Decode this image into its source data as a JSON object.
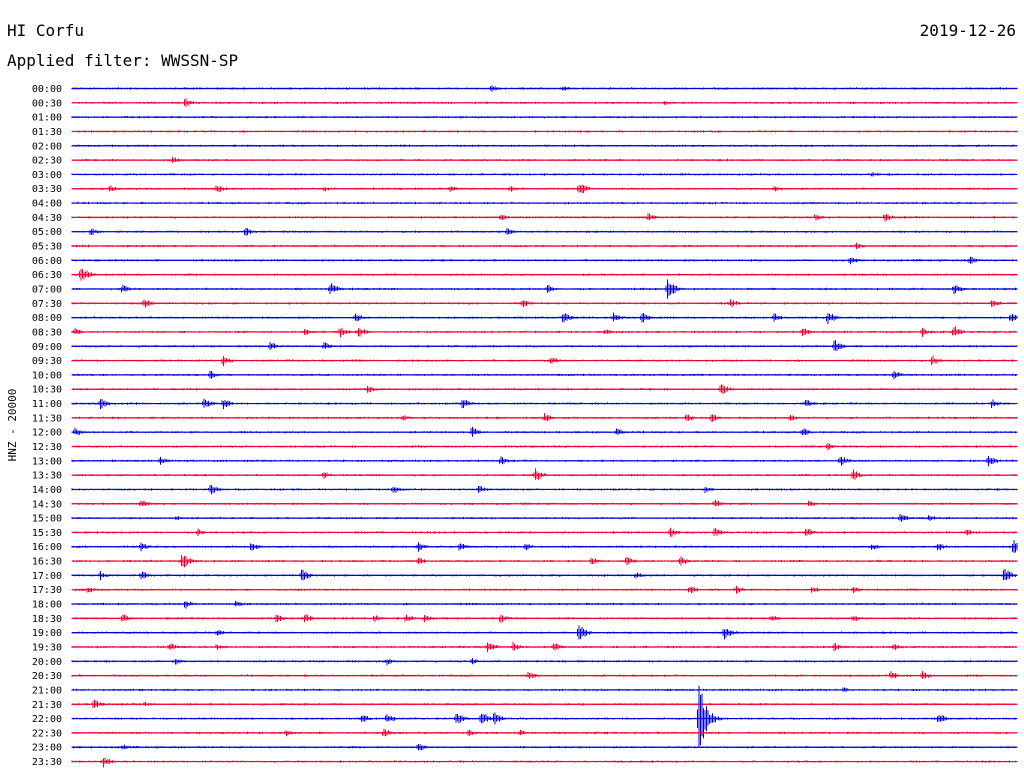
{
  "header": {
    "station": "HI Corfu",
    "date": "2019-12-26",
    "filter_label": "Applied filter: WWSSN-SP"
  },
  "chart_data": {
    "type": "line",
    "title": "HI Corfu",
    "ylabel": "HNZ - 20000",
    "row_labels": [
      "00:00",
      "00:30",
      "01:00",
      "01:30",
      "02:00",
      "02:30",
      "03:00",
      "03:30",
      "04:00",
      "04:30",
      "05:00",
      "05:30",
      "06:00",
      "06:30",
      "07:00",
      "07:30",
      "08:00",
      "08:30",
      "09:00",
      "09:30",
      "10:00",
      "10:30",
      "11:00",
      "11:30",
      "12:00",
      "12:30",
      "13:00",
      "13:30",
      "14:00",
      "14:30",
      "15:00",
      "15:30",
      "16:00",
      "16:30",
      "17:00",
      "17:30",
      "18:00",
      "18:30",
      "19:00",
      "19:30",
      "20:00",
      "20:30",
      "21:00",
      "21:30",
      "22:00",
      "22:30",
      "23:00",
      "23:30"
    ],
    "colors": {
      "even_rows": "#0000dd",
      "odd_rows": "#ee0033"
    },
    "x_minutes_per_row": 30,
    "events": [
      {
        "row": 0,
        "minute": 13.3,
        "amp": 4
      },
      {
        "row": 0,
        "minute": 15.6,
        "amp": 3
      },
      {
        "row": 1,
        "minute": 3.6,
        "amp": 5
      },
      {
        "row": 1,
        "minute": 18.8,
        "amp": 3
      },
      {
        "row": 5,
        "minute": 3.2,
        "amp": 4
      },
      {
        "row": 6,
        "minute": 25.4,
        "amp": 3
      },
      {
        "row": 7,
        "minute": 1.2,
        "amp": 4
      },
      {
        "row": 7,
        "minute": 4.6,
        "amp": 5
      },
      {
        "row": 7,
        "minute": 8.0,
        "amp": 3
      },
      {
        "row": 7,
        "minute": 12.0,
        "amp": 4
      },
      {
        "row": 7,
        "minute": 13.9,
        "amp": 4
      },
      {
        "row": 7,
        "minute": 16.1,
        "amp": 8
      },
      {
        "row": 7,
        "minute": 22.3,
        "amp": 4
      },
      {
        "row": 9,
        "minute": 13.6,
        "amp": 4
      },
      {
        "row": 9,
        "minute": 18.3,
        "amp": 5
      },
      {
        "row": 9,
        "minute": 23.6,
        "amp": 4
      },
      {
        "row": 9,
        "minute": 25.8,
        "amp": 5
      },
      {
        "row": 10,
        "minute": 0.6,
        "amp": 5
      },
      {
        "row": 10,
        "minute": 5.5,
        "amp": 5
      },
      {
        "row": 10,
        "minute": 13.8,
        "amp": 4
      },
      {
        "row": 11,
        "minute": 24.9,
        "amp": 4
      },
      {
        "row": 12,
        "minute": 24.7,
        "amp": 5
      },
      {
        "row": 12,
        "minute": 28.5,
        "amp": 5
      },
      {
        "row": 13,
        "minute": 0.3,
        "amp": 10
      },
      {
        "row": 14,
        "minute": 1.6,
        "amp": 5
      },
      {
        "row": 14,
        "minute": 8.2,
        "amp": 7
      },
      {
        "row": 14,
        "minute": 15.1,
        "amp": 5
      },
      {
        "row": 14,
        "minute": 18.9,
        "amp": 12
      },
      {
        "row": 14,
        "minute": 28.0,
        "amp": 6
      },
      {
        "row": 15,
        "minute": 2.3,
        "amp": 6
      },
      {
        "row": 15,
        "minute": 14.3,
        "amp": 5
      },
      {
        "row": 15,
        "minute": 20.9,
        "amp": 5
      },
      {
        "row": 15,
        "minute": 29.2,
        "amp": 5
      },
      {
        "row": 16,
        "minute": 9.0,
        "amp": 5
      },
      {
        "row": 16,
        "minute": 15.6,
        "amp": 7
      },
      {
        "row": 16,
        "minute": 17.2,
        "amp": 6
      },
      {
        "row": 16,
        "minute": 18.1,
        "amp": 6
      },
      {
        "row": 16,
        "minute": 22.3,
        "amp": 5
      },
      {
        "row": 16,
        "minute": 24.0,
        "amp": 7
      },
      {
        "row": 16,
        "minute": 29.8,
        "amp": 5
      },
      {
        "row": 17,
        "minute": 0.1,
        "amp": 4
      },
      {
        "row": 17,
        "minute": 7.4,
        "amp": 4
      },
      {
        "row": 17,
        "minute": 8.5,
        "amp": 6
      },
      {
        "row": 17,
        "minute": 9.1,
        "amp": 6
      },
      {
        "row": 17,
        "minute": 16.9,
        "amp": 4
      },
      {
        "row": 17,
        "minute": 23.2,
        "amp": 5
      },
      {
        "row": 17,
        "minute": 27.0,
        "amp": 5
      },
      {
        "row": 17,
        "minute": 28.0,
        "amp": 7
      },
      {
        "row": 18,
        "minute": 6.3,
        "amp": 5
      },
      {
        "row": 18,
        "minute": 8.0,
        "amp": 5
      },
      {
        "row": 18,
        "minute": 24.2,
        "amp": 8
      },
      {
        "row": 19,
        "minute": 4.8,
        "amp": 6
      },
      {
        "row": 19,
        "minute": 15.2,
        "amp": 5
      },
      {
        "row": 19,
        "minute": 27.3,
        "amp": 6
      },
      {
        "row": 20,
        "minute": 4.4,
        "amp": 5
      },
      {
        "row": 20,
        "minute": 26.1,
        "amp": 5
      },
      {
        "row": 21,
        "minute": 9.4,
        "amp": 5
      },
      {
        "row": 21,
        "minute": 20.6,
        "amp": 7
      },
      {
        "row": 22,
        "minute": 0.9,
        "amp": 6
      },
      {
        "row": 22,
        "minute": 4.2,
        "amp": 6
      },
      {
        "row": 22,
        "minute": 4.8,
        "amp": 6
      },
      {
        "row": 22,
        "minute": 12.4,
        "amp": 6
      },
      {
        "row": 22,
        "minute": 23.3,
        "amp": 5
      },
      {
        "row": 22,
        "minute": 29.2,
        "amp": 5
      },
      {
        "row": 23,
        "minute": 10.5,
        "amp": 4
      },
      {
        "row": 23,
        "minute": 15.0,
        "amp": 5
      },
      {
        "row": 23,
        "minute": 19.5,
        "amp": 5
      },
      {
        "row": 23,
        "minute": 20.3,
        "amp": 5
      },
      {
        "row": 23,
        "minute": 22.8,
        "amp": 4
      },
      {
        "row": 24,
        "minute": 0.1,
        "amp": 5
      },
      {
        "row": 24,
        "minute": 12.7,
        "amp": 6
      },
      {
        "row": 24,
        "minute": 17.3,
        "amp": 5
      },
      {
        "row": 24,
        "minute": 23.2,
        "amp": 5
      },
      {
        "row": 25,
        "minute": 24.0,
        "amp": 4
      },
      {
        "row": 26,
        "minute": 2.8,
        "amp": 5
      },
      {
        "row": 26,
        "minute": 13.6,
        "amp": 5
      },
      {
        "row": 26,
        "minute": 24.4,
        "amp": 6
      },
      {
        "row": 26,
        "minute": 29.1,
        "amp": 7
      },
      {
        "row": 27,
        "minute": 8.0,
        "amp": 4
      },
      {
        "row": 27,
        "minute": 14.7,
        "amp": 8
      },
      {
        "row": 27,
        "minute": 24.8,
        "amp": 6
      },
      {
        "row": 28,
        "minute": 4.4,
        "amp": 6
      },
      {
        "row": 28,
        "minute": 10.2,
        "amp": 5
      },
      {
        "row": 28,
        "minute": 12.9,
        "amp": 5
      },
      {
        "row": 28,
        "minute": 20.1,
        "amp": 4
      },
      {
        "row": 29,
        "minute": 2.2,
        "amp": 5
      },
      {
        "row": 29,
        "minute": 20.4,
        "amp": 5
      },
      {
        "row": 29,
        "minute": 23.4,
        "amp": 4
      },
      {
        "row": 30,
        "minute": 3.3,
        "amp": 3
      },
      {
        "row": 30,
        "minute": 26.3,
        "amp": 5
      },
      {
        "row": 30,
        "minute": 27.2,
        "amp": 4
      },
      {
        "row": 31,
        "minute": 4.0,
        "amp": 4
      },
      {
        "row": 31,
        "minute": 19.0,
        "amp": 6
      },
      {
        "row": 31,
        "minute": 20.4,
        "amp": 5
      },
      {
        "row": 31,
        "minute": 23.3,
        "amp": 6
      },
      {
        "row": 31,
        "minute": 28.4,
        "amp": 4
      },
      {
        "row": 32,
        "minute": 2.2,
        "amp": 5
      },
      {
        "row": 32,
        "minute": 5.7,
        "amp": 5
      },
      {
        "row": 32,
        "minute": 11.0,
        "amp": 5
      },
      {
        "row": 32,
        "minute": 12.3,
        "amp": 5
      },
      {
        "row": 32,
        "minute": 14.4,
        "amp": 4
      },
      {
        "row": 32,
        "minute": 25.4,
        "amp": 4
      },
      {
        "row": 32,
        "minute": 27.5,
        "amp": 5
      },
      {
        "row": 32,
        "minute": 29.9,
        "amp": 9
      },
      {
        "row": 33,
        "minute": 3.5,
        "amp": 9
      },
      {
        "row": 33,
        "minute": 11.0,
        "amp": 4
      },
      {
        "row": 33,
        "minute": 16.5,
        "amp": 5
      },
      {
        "row": 33,
        "minute": 17.6,
        "amp": 5
      },
      {
        "row": 33,
        "minute": 19.3,
        "amp": 6
      },
      {
        "row": 34,
        "minute": 0.9,
        "amp": 5
      },
      {
        "row": 34,
        "minute": 2.2,
        "amp": 5
      },
      {
        "row": 34,
        "minute": 7.3,
        "amp": 7
      },
      {
        "row": 34,
        "minute": 17.9,
        "amp": 4
      },
      {
        "row": 34,
        "minute": 29.6,
        "amp": 8
      },
      {
        "row": 35,
        "minute": 0.5,
        "amp": 4
      },
      {
        "row": 35,
        "minute": 19.6,
        "amp": 5
      },
      {
        "row": 35,
        "minute": 21.1,
        "amp": 5
      },
      {
        "row": 35,
        "minute": 23.5,
        "amp": 4
      },
      {
        "row": 35,
        "minute": 24.8,
        "amp": 4
      },
      {
        "row": 36,
        "minute": 3.6,
        "amp": 5
      },
      {
        "row": 36,
        "minute": 5.2,
        "amp": 4
      },
      {
        "row": 37,
        "minute": 1.6,
        "amp": 5
      },
      {
        "row": 37,
        "minute": 6.5,
        "amp": 5
      },
      {
        "row": 37,
        "minute": 7.4,
        "amp": 5
      },
      {
        "row": 37,
        "minute": 9.6,
        "amp": 4
      },
      {
        "row": 37,
        "minute": 10.6,
        "amp": 5
      },
      {
        "row": 37,
        "minute": 11.2,
        "amp": 5
      },
      {
        "row": 37,
        "minute": 13.6,
        "amp": 5
      },
      {
        "row": 37,
        "minute": 22.2,
        "amp": 4
      },
      {
        "row": 37,
        "minute": 24.8,
        "amp": 4
      },
      {
        "row": 38,
        "minute": 4.6,
        "amp": 4
      },
      {
        "row": 38,
        "minute": 16.1,
        "amp": 9
      },
      {
        "row": 38,
        "minute": 20.7,
        "amp": 8
      },
      {
        "row": 39,
        "minute": 3.1,
        "amp": 5
      },
      {
        "row": 39,
        "minute": 4.6,
        "amp": 4
      },
      {
        "row": 39,
        "minute": 13.2,
        "amp": 7
      },
      {
        "row": 39,
        "minute": 14.0,
        "amp": 5
      },
      {
        "row": 39,
        "minute": 15.3,
        "amp": 5
      },
      {
        "row": 39,
        "minute": 24.2,
        "amp": 5
      },
      {
        "row": 39,
        "minute": 26.1,
        "amp": 4
      },
      {
        "row": 40,
        "minute": 3.3,
        "amp": 4
      },
      {
        "row": 40,
        "minute": 10.0,
        "amp": 4
      },
      {
        "row": 40,
        "minute": 12.7,
        "amp": 4
      },
      {
        "row": 41,
        "minute": 14.5,
        "amp": 5
      },
      {
        "row": 41,
        "minute": 26.0,
        "amp": 5
      },
      {
        "row": 41,
        "minute": 27.0,
        "amp": 5
      },
      {
        "row": 42,
        "minute": 24.5,
        "amp": 3
      },
      {
        "row": 43,
        "minute": 0.7,
        "amp": 6
      },
      {
        "row": 43,
        "minute": 2.3,
        "amp": 3
      },
      {
        "row": 44,
        "minute": 9.2,
        "amp": 6
      },
      {
        "row": 44,
        "minute": 10.0,
        "amp": 6
      },
      {
        "row": 44,
        "minute": 12.2,
        "amp": 7
      },
      {
        "row": 44,
        "minute": 13.0,
        "amp": 9
      },
      {
        "row": 44,
        "minute": 13.4,
        "amp": 7
      },
      {
        "row": 44,
        "minute": 19.9,
        "amp": 40
      },
      {
        "row": 44,
        "minute": 27.5,
        "amp": 6
      },
      {
        "row": 45,
        "minute": 6.8,
        "amp": 4
      },
      {
        "row": 45,
        "minute": 9.9,
        "amp": 5
      },
      {
        "row": 45,
        "minute": 12.6,
        "amp": 4
      },
      {
        "row": 45,
        "minute": 14.2,
        "amp": 4
      },
      {
        "row": 46,
        "minute": 1.6,
        "amp": 4
      },
      {
        "row": 46,
        "minute": 11.0,
        "amp": 5
      },
      {
        "row": 47,
        "minute": 1.0,
        "amp": 6
      }
    ]
  }
}
